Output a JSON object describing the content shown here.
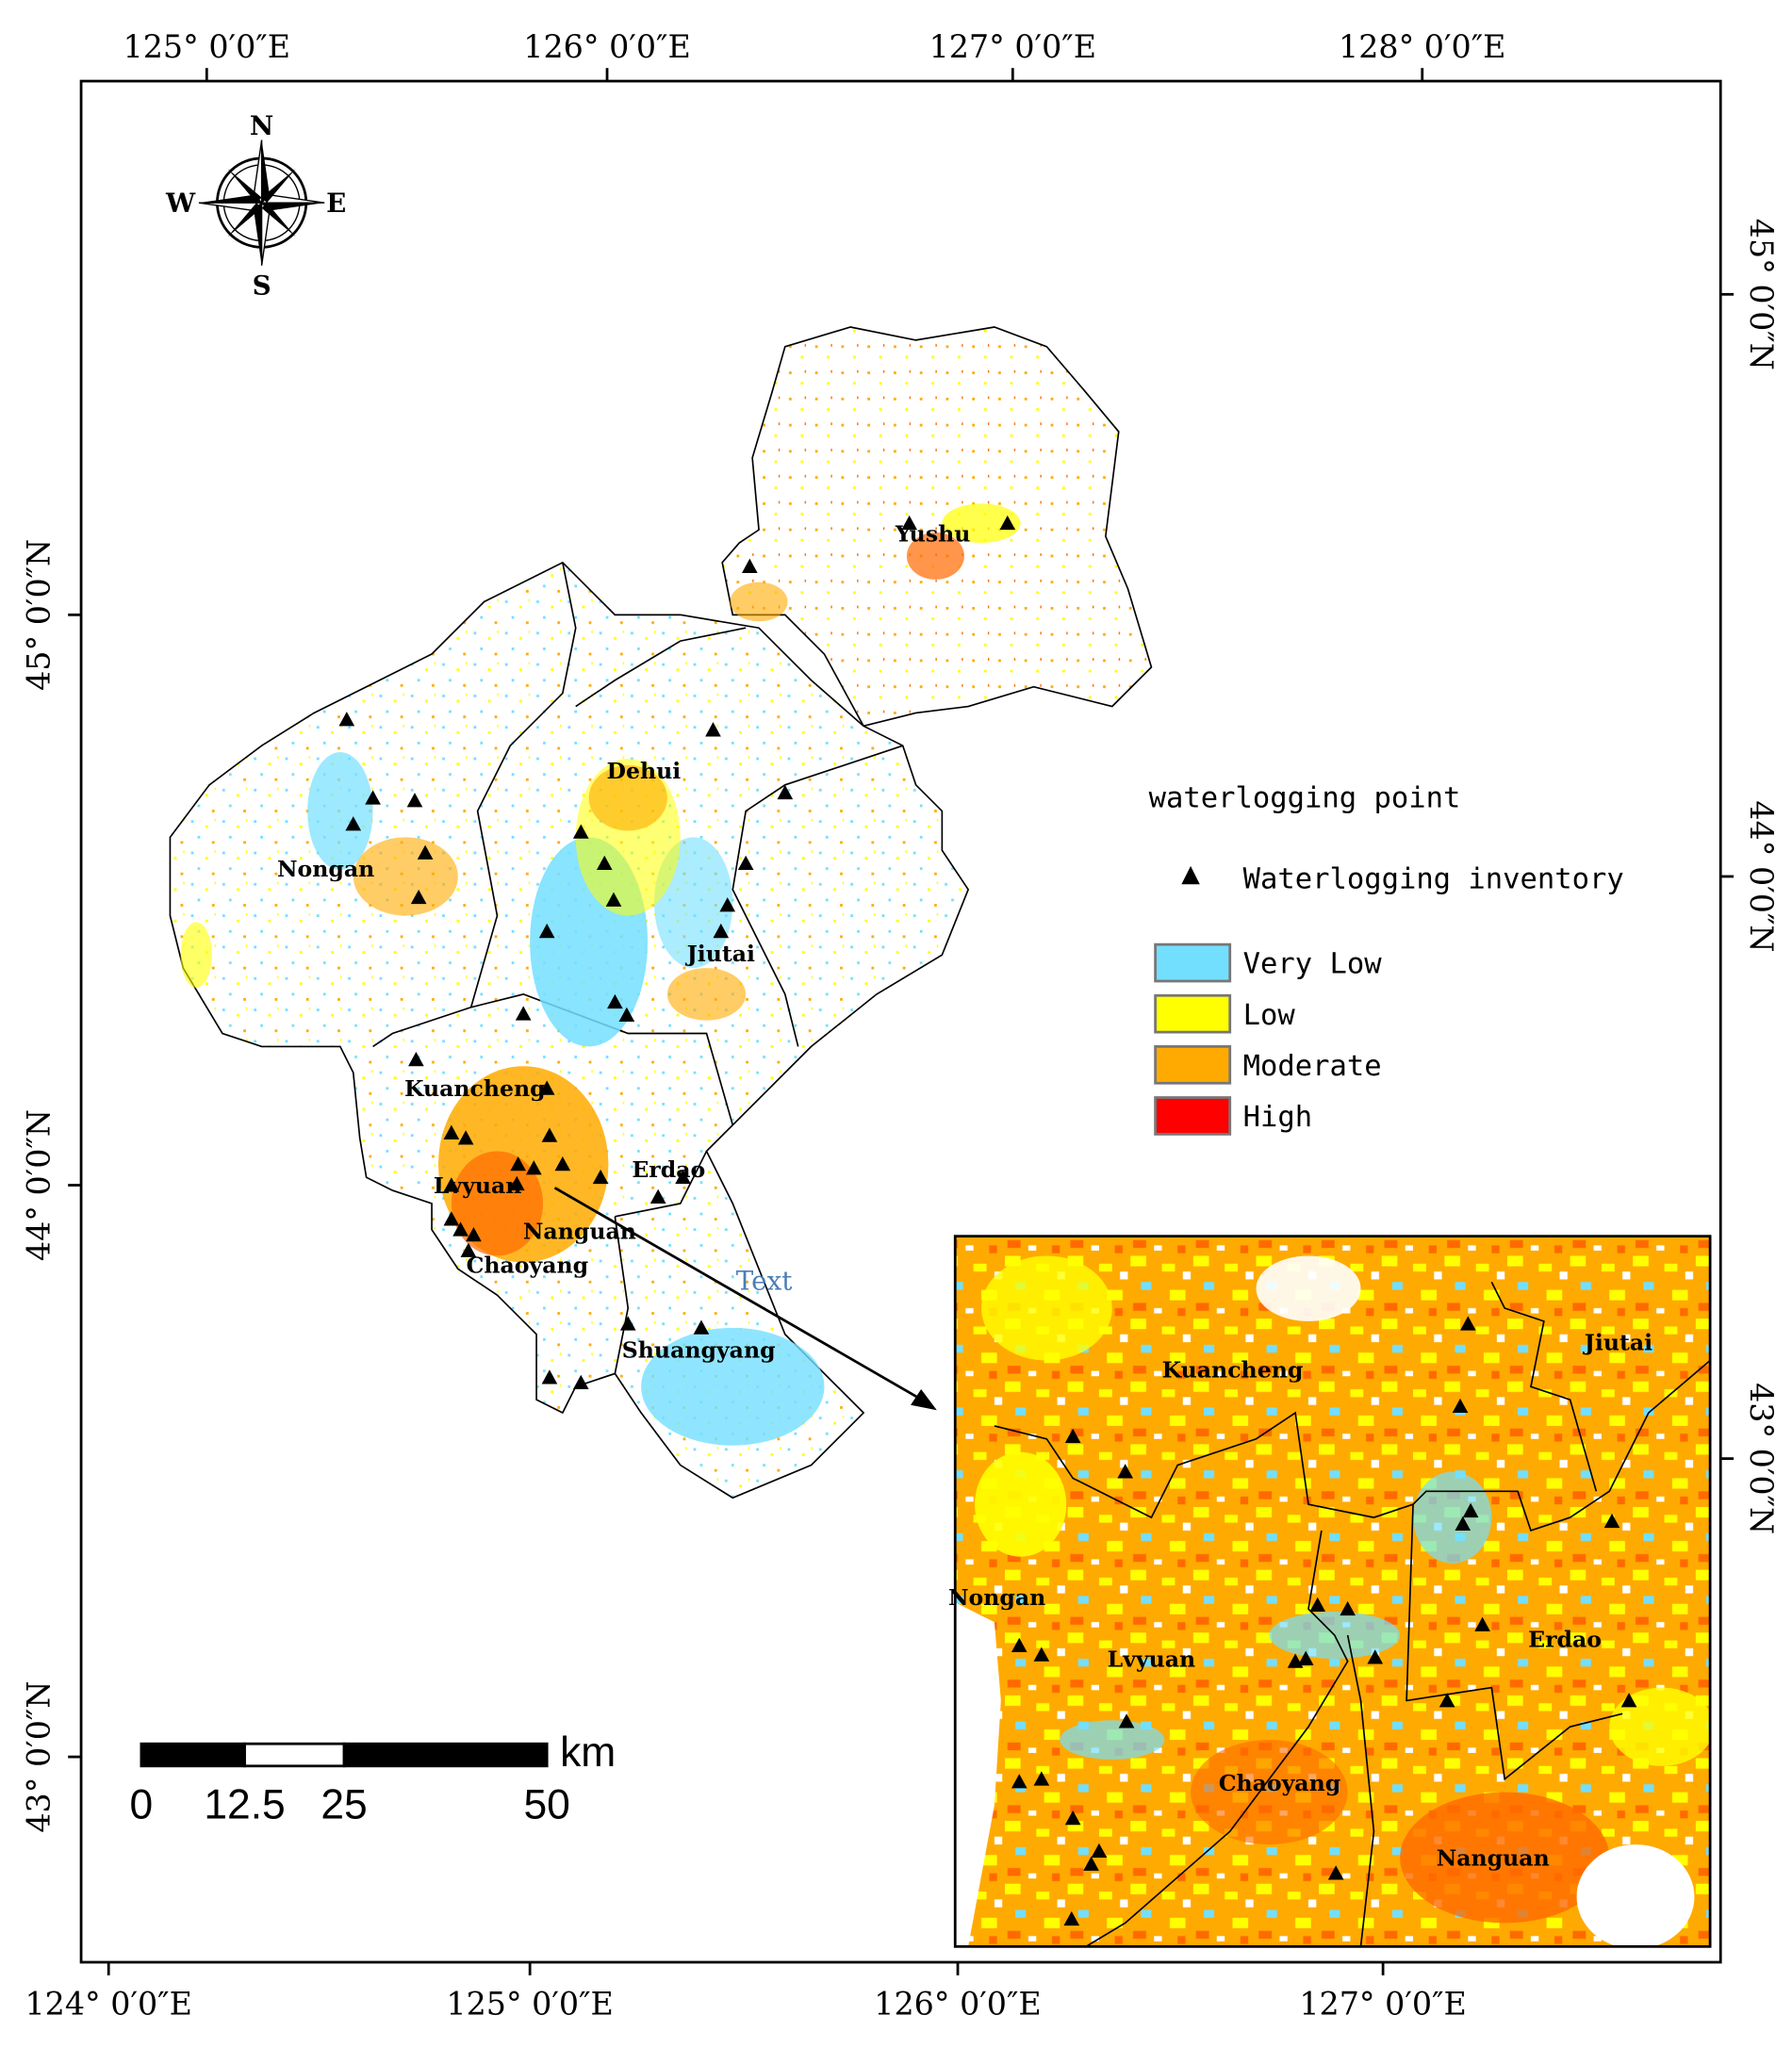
{
  "axes": {
    "top": [
      "125° 0′0″E",
      "126° 0′0″E",
      "127° 0′0″E",
      "128° 0′0″E"
    ],
    "bottom": [
      "124° 0′0″E",
      "125° 0′0″E",
      "126° 0′0″E",
      "127° 0′0″E"
    ],
    "left": [
      "45° 0′0″N",
      "44° 0′0″N",
      "43° 0′0″N"
    ],
    "right": [
      "45° 0′0″N",
      "44° 0′0″N",
      "43° 0′0″N"
    ]
  },
  "compass": {
    "n": "N",
    "s": "S",
    "w": "W",
    "e": "E"
  },
  "legend": {
    "title": "waterlogging point",
    "point": "Waterlogging inventory",
    "classes": [
      {
        "label": "Very Low",
        "color": "#73dfff"
      },
      {
        "label": "Low",
        "color": "#ffff00"
      },
      {
        "label": "Moderate",
        "color": "#ffaa00"
      },
      {
        "label": "High",
        "color": "#ff0000"
      }
    ]
  },
  "scale_bar": {
    "labels": [
      "0",
      "12.5",
      "25",
      "50"
    ],
    "unit": "km"
  },
  "places": [
    "Yushu",
    "Dehui",
    "Nongan",
    "Jiutai",
    "Kuancheng",
    "Erdao",
    "Lvyuan",
    "Nanguan",
    "Chaoyang",
    "Shuangyang"
  ],
  "annotation": "Text",
  "inset_places": [
    "Kuancheng",
    "Jiutai",
    "Nongan",
    "Lvyuan",
    "Erdao",
    "Chaoyang",
    "Nanguan"
  ]
}
